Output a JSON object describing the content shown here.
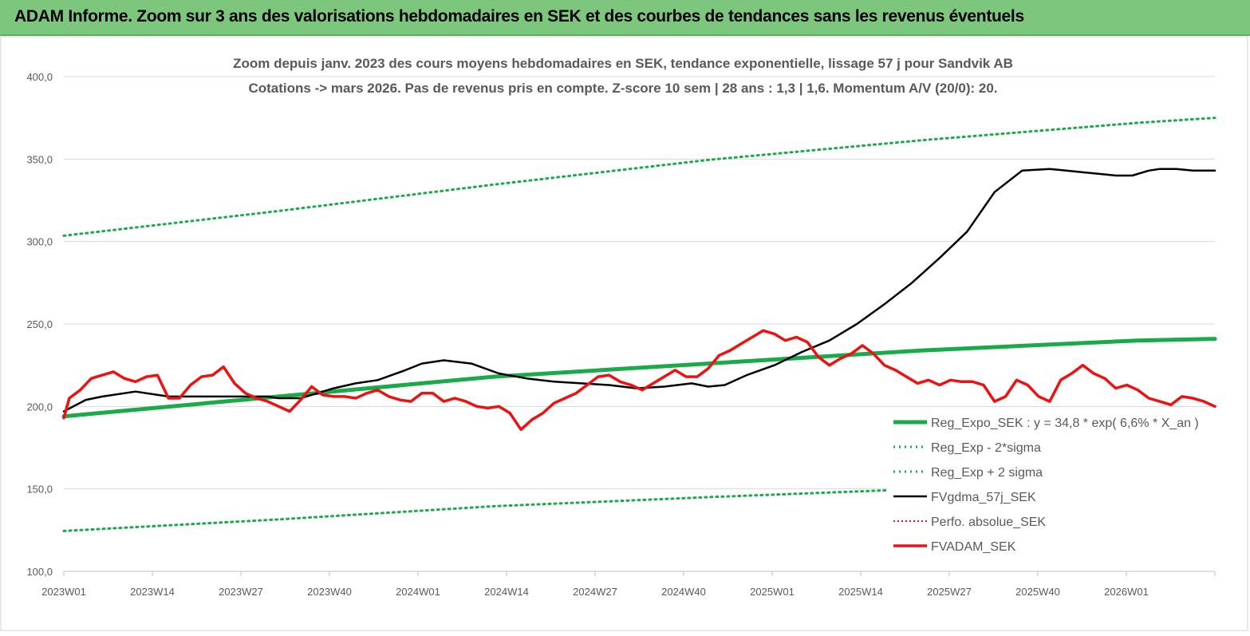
{
  "banner": {
    "title": "ADAM Informe. Zoom sur 3 ans des valorisations hebdomadaires en SEK et des courbes de tendances sans les revenus éventuels"
  },
  "chart_data": {
    "type": "line",
    "title_line1": "Zoom depuis janv. 2023 des cours moyens hebdomadaires en SEK, tendance exponentielle, lissage 57 j pour Sandvik AB",
    "title_line2": "Cotations -> mars 2026. Pas de revenus pris en compte. Z-score 10 sem | 28 ans : 1,3 | 1,6. Momentum A/V (20/0): 20.",
    "ylim": [
      100,
      400
    ],
    "yticks": [
      "100,0",
      "150,0",
      "200,0",
      "250,0",
      "300,0",
      "350,0",
      "400,0"
    ],
    "xticks": [
      "2023W01",
      "2023W14",
      "2023W27",
      "2023W40",
      "2024W01",
      "2024W14",
      "2024W27",
      "2024W40",
      "2025W01",
      "2025W14",
      "2025W27",
      "2025W40",
      "2026W01"
    ],
    "grid": true,
    "legend_position": "bottom-right",
    "colors": {
      "reg": "#1aaa4a",
      "sigma": "#1aaa4a",
      "ma": "#000000",
      "perf": "#e21a1a",
      "price": "#ee1111"
    },
    "series": [
      {
        "name": "Reg_Expo_SEK : y = 34,8 * exp( 6,6% *  X_an )",
        "style": "solid-thick",
        "x": [
          1,
          40,
          79,
          118,
          157,
          196,
          210
        ],
        "y": [
          194,
          206,
          218,
          226,
          234,
          240,
          241
        ]
      },
      {
        "name": "Reg_Exp - 2*sigma",
        "style": "dotted",
        "x": [
          1,
          40,
          79,
          118,
          157,
          196,
          210
        ],
        "y": [
          124.5,
          131.5,
          139.5,
          145,
          150,
          153.5,
          154.5
        ]
      },
      {
        "name": "Reg_Exp + 2 sigma",
        "style": "dotted",
        "x": [
          1,
          40,
          79,
          118,
          157,
          196,
          210
        ],
        "y": [
          303.5,
          318.5,
          334.5,
          349.5,
          361.5,
          372,
          375
        ]
      },
      {
        "name": "FVgdma_57j_SEK",
        "style": "solid",
        "x": [
          1,
          5,
          8,
          14,
          20,
          26,
          32,
          38,
          40,
          44,
          50,
          54,
          58,
          63,
          66,
          70,
          75,
          80,
          85,
          90,
          95,
          100,
          105,
          110,
          115,
          118,
          121,
          125,
          130,
          135,
          140,
          145,
          150,
          155,
          160,
          165,
          170,
          175,
          180,
          183,
          186,
          189,
          192,
          195,
          198,
          200,
          203,
          206,
          208,
          210
        ],
        "y": [
          197,
          204,
          206,
          209,
          206,
          206,
          206,
          206,
          205,
          205,
          211,
          214,
          216,
          222,
          226,
          228,
          226,
          220,
          217,
          215,
          214,
          213,
          211,
          212,
          214,
          212,
          213,
          219,
          225,
          233,
          240,
          250,
          262,
          275,
          290,
          306,
          330,
          343,
          344,
          343,
          342,
          341,
          340,
          340,
          343,
          344,
          344,
          343,
          343,
          343
        ]
      },
      {
        "name": "Perfo. absolue_SEK",
        "style": "dotted",
        "x": [],
        "y": []
      },
      {
        "name": "FVADAM_SEK",
        "style": "solid-thick",
        "x": [
          1,
          2,
          4,
          6,
          8,
          10,
          12,
          14,
          16,
          18,
          20,
          22,
          24,
          26,
          28,
          30,
          32,
          34,
          36,
          38,
          40,
          42,
          44,
          46,
          48,
          50,
          52,
          54,
          56,
          58,
          60,
          62,
          64,
          66,
          68,
          70,
          72,
          74,
          76,
          78,
          80,
          82,
          84,
          86,
          88,
          90,
          92,
          94,
          96,
          98,
          100,
          102,
          104,
          106,
          108,
          110,
          112,
          114,
          116,
          118,
          120,
          122,
          124,
          126,
          128,
          130,
          132,
          134,
          136,
          138,
          140,
          142,
          144,
          146,
          148,
          150,
          152,
          154,
          156,
          158,
          160,
          162,
          164,
          166,
          168,
          170,
          172,
          174,
          176,
          178,
          180,
          182,
          184,
          186,
          188,
          190,
          192,
          194,
          196,
          198,
          200,
          202,
          204,
          206,
          208,
          210
        ],
        "y": [
          193,
          205,
          210,
          217,
          219,
          221,
          217,
          215,
          218,
          219,
          205,
          205,
          213,
          218,
          219,
          224,
          214,
          208,
          205,
          203,
          200,
          197,
          204,
          212,
          207,
          206,
          206,
          205,
          208,
          210,
          206,
          204,
          203,
          208,
          208,
          203,
          205,
          203,
          200,
          199,
          200,
          196,
          186,
          192,
          196,
          202,
          205,
          208,
          213,
          218,
          219,
          215,
          213,
          210,
          214,
          218,
          222,
          218,
          218,
          223,
          231,
          234,
          238,
          242,
          246,
          244,
          240,
          242,
          239,
          230,
          225,
          229,
          232,
          237,
          232,
          225,
          222,
          218,
          214,
          216,
          213,
          216,
          215,
          215,
          213,
          203,
          206,
          216,
          213,
          206,
          203,
          216,
          220,
          225,
          220,
          217,
          211,
          213,
          210,
          205,
          203,
          201,
          206,
          205,
          203,
          200
        ]
      }
    ],
    "legend": [
      "Reg_Expo_SEK : y = 34,8 * exp( 6,6% *  X_an )",
      "Reg_Exp - 2*sigma",
      "Reg_Exp + 2 sigma",
      "FVgdma_57j_SEK",
      "Perfo. absolue_SEK",
      "FVADAM_SEK"
    ]
  }
}
